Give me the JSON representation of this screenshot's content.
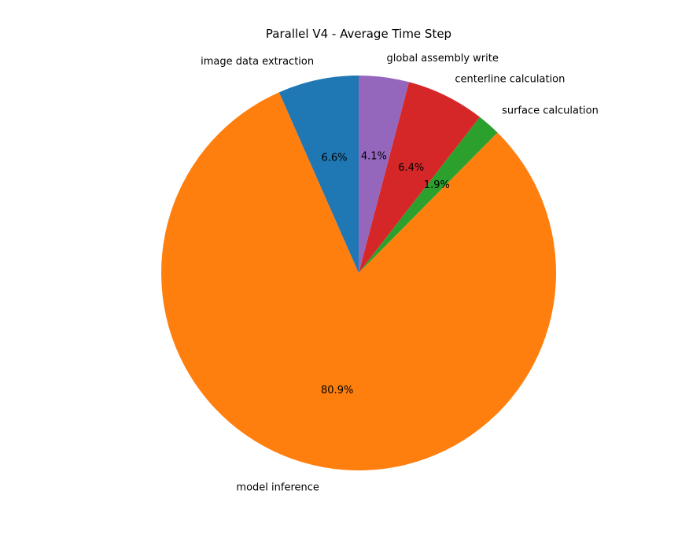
{
  "chart_data": {
    "type": "pie",
    "title": "Parallel V4 - Average Time Step",
    "start_angle_deg": 90,
    "direction": "counterclockwise",
    "slices": [
      {
        "label": "image data extraction",
        "value": 6.6,
        "pct_label": "6.6%",
        "color": "#1f77b4"
      },
      {
        "label": "model inference",
        "value": 80.9,
        "pct_label": "80.9%",
        "color": "#ff7f0e"
      },
      {
        "label": "surface calculation",
        "value": 1.9,
        "pct_label": "1.9%",
        "color": "#2ca02c"
      },
      {
        "label": "centerline calculation",
        "value": 6.4,
        "pct_label": "6.4%",
        "color": "#d62728"
      },
      {
        "label": "global assembly write",
        "value": 4.1,
        "pct_label": "4.1%",
        "color": "#9467bd"
      }
    ]
  }
}
